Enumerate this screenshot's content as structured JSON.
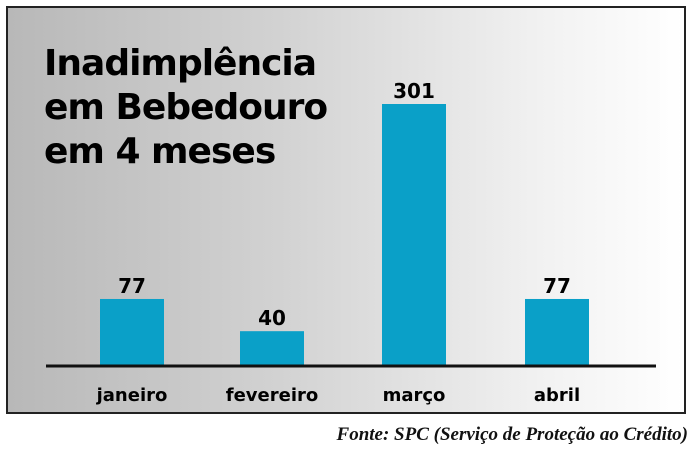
{
  "chart_data": {
    "type": "bar",
    "title_lines": [
      "Inadimplência",
      "em Bebedouro",
      "em 4 meses"
    ],
    "categories": [
      "janeiro",
      "fevereiro",
      "março",
      "abril"
    ],
    "values": [
      77,
      40,
      301,
      77
    ],
    "value_labels": [
      "77",
      "40",
      "301",
      "77"
    ],
    "ylim": [
      0,
      301
    ],
    "grid": false,
    "source": "Fonte: SPC (Serviço de Proteção ao Crédito)"
  },
  "colors": {
    "bar": "#0aa0c8",
    "baseline": "#111111",
    "text": "#000000"
  }
}
